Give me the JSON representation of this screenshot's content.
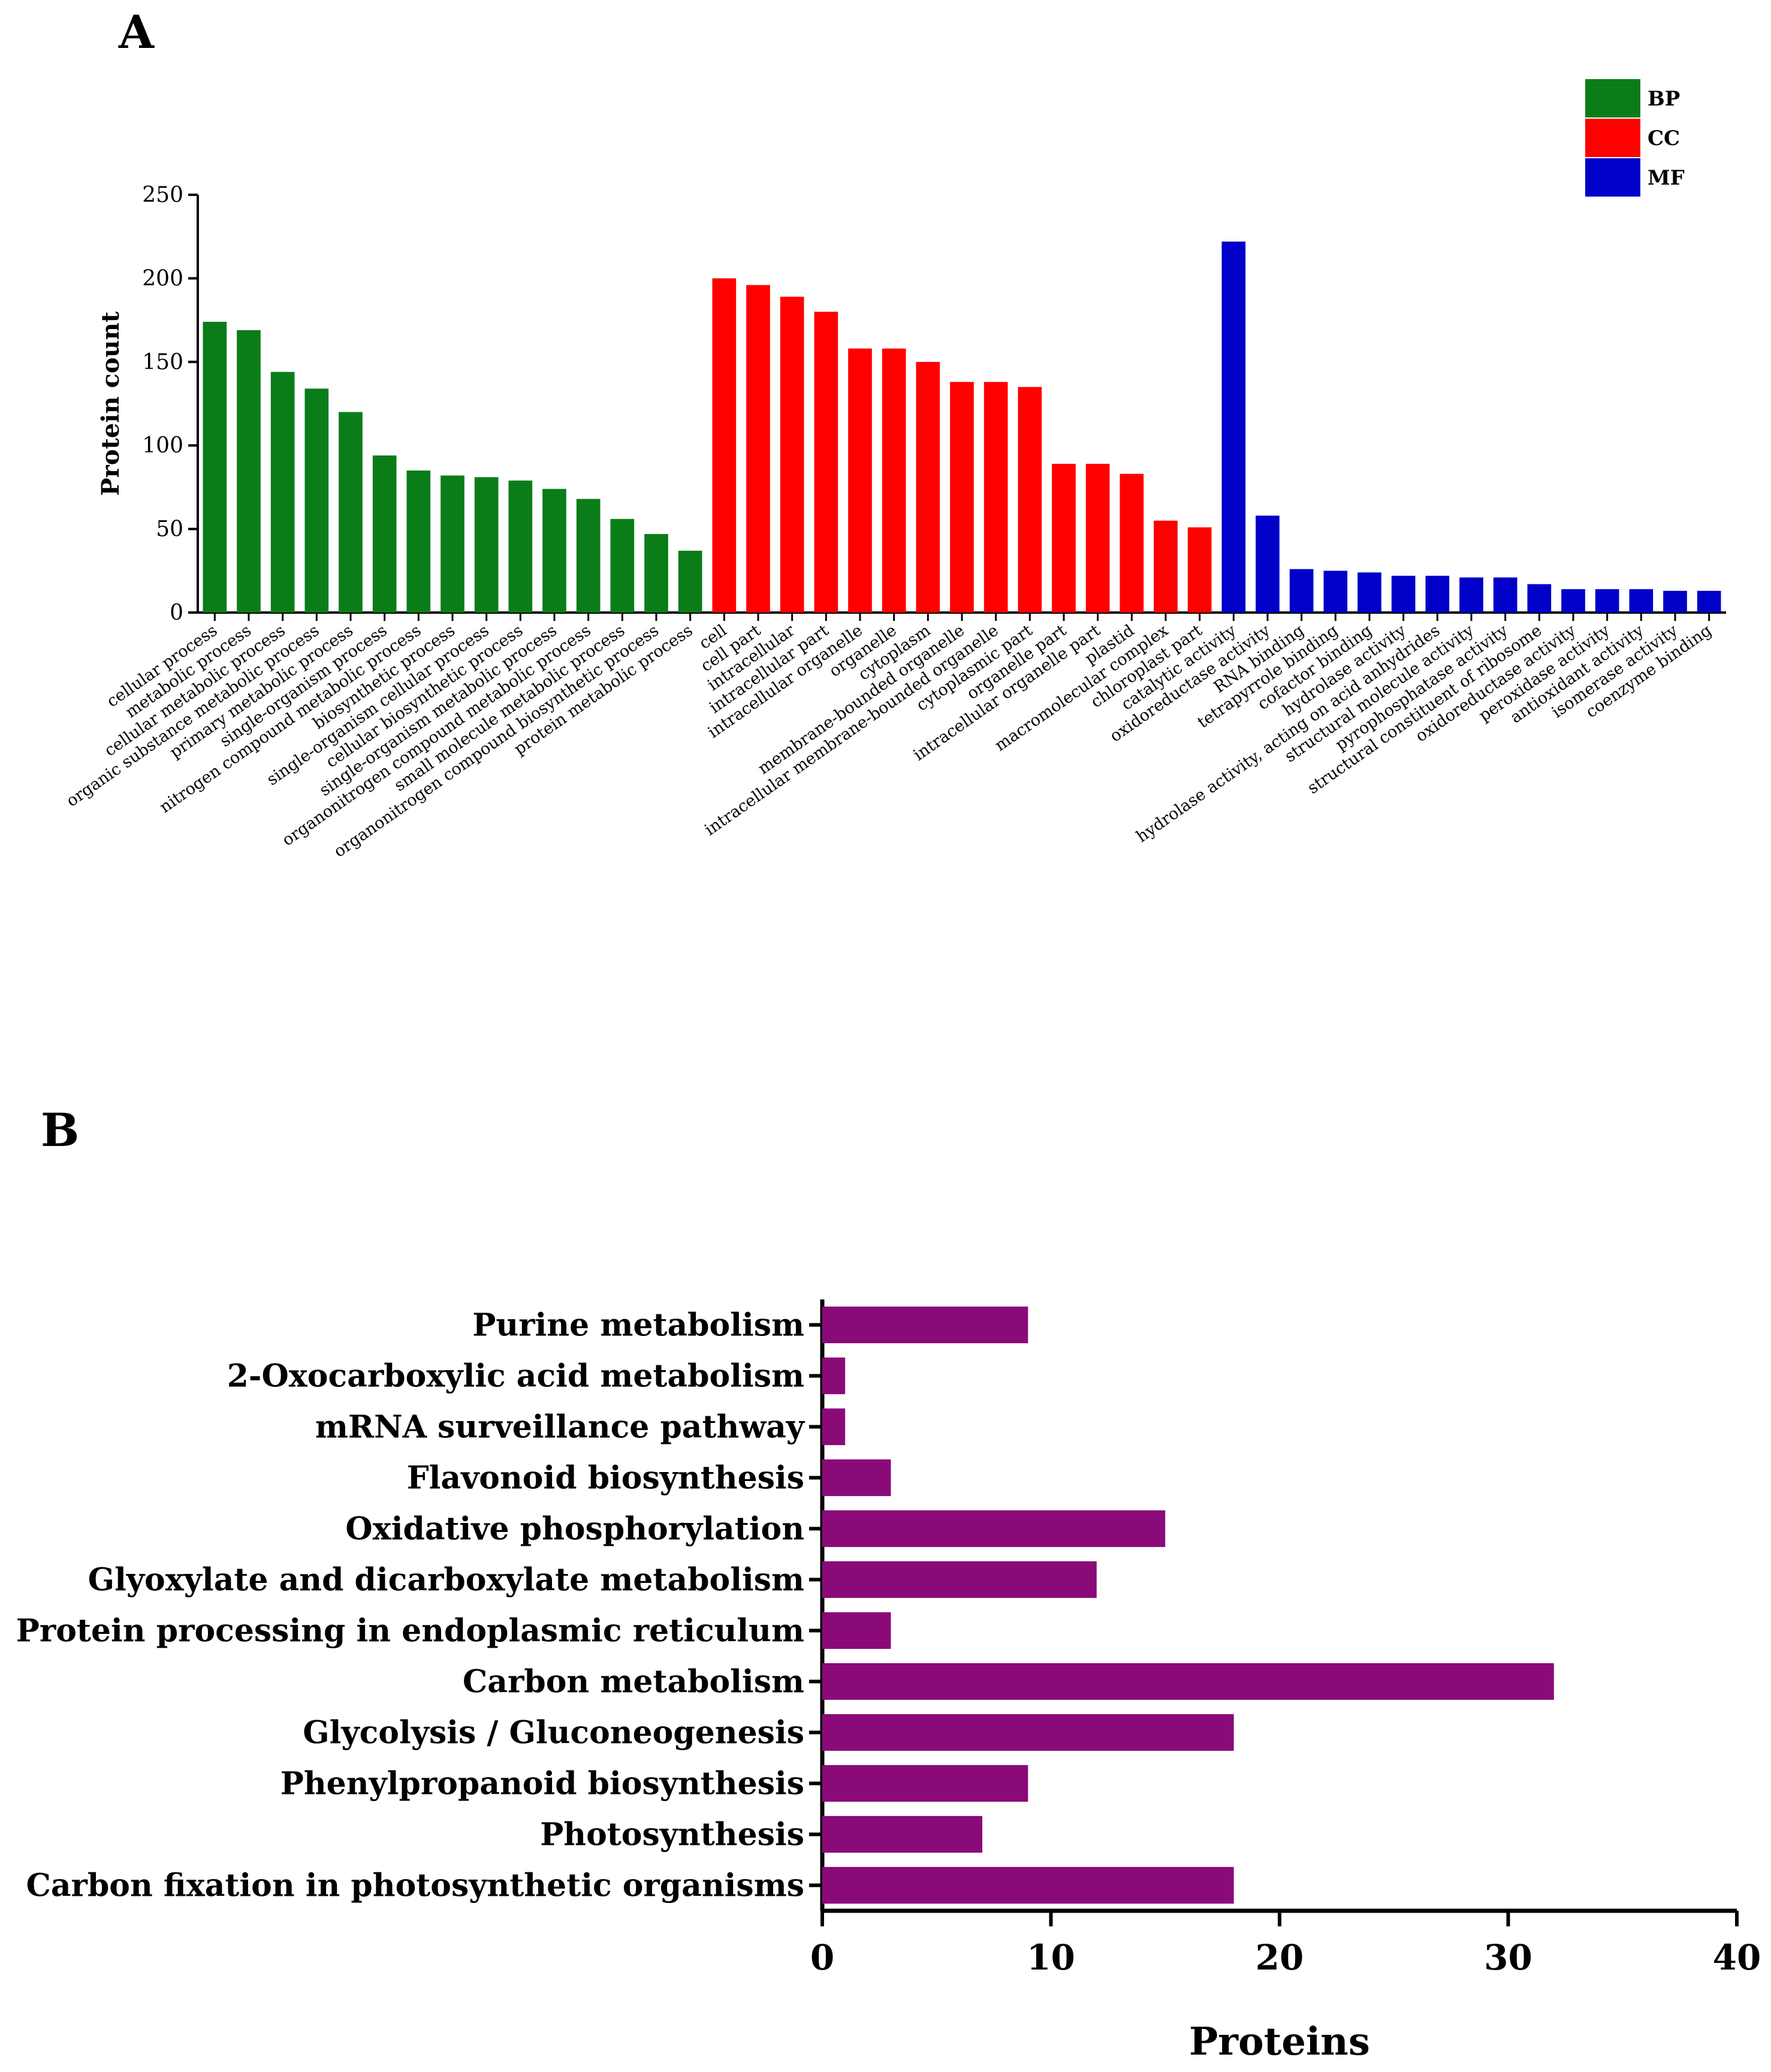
{
  "panels": {
    "a": "A",
    "b": "B"
  },
  "colors": {
    "BP": "#0a7d18",
    "CC": "#ff0000",
    "MF": "#0000c8",
    "kegg": "#8b0a7a"
  },
  "chart_data": [
    {
      "type": "bar",
      "title": "",
      "ylabel": "Protein count",
      "xlabel": "",
      "ylim": [
        0,
        250
      ],
      "yticks": [
        0,
        50,
        100,
        150,
        200,
        250
      ],
      "legend": {
        "placement": "top-right",
        "entries": [
          "BP",
          "CC",
          "MF"
        ]
      },
      "categories": [
        "cellular process",
        "metabolic process",
        "cellular metabolic process",
        "organic substance metabolic process",
        "primary metabolic process",
        "single-organism process",
        "nitrogen compound metabolic process",
        "biosynthetic process",
        "single-organism cellular process",
        "cellular biosynthetic process",
        "single-organism metabolic process",
        "organonitrogen compound metabolic process",
        "small molecule metabolic process",
        "organonitrogen compound biosynthetic process",
        "protein metabolic process",
        "cell",
        "cell part",
        "intracellular",
        "intracellular part",
        "intracellular organelle",
        "organelle",
        "cytoplasm",
        "membrane-bounded organelle",
        "intracellular membrane-bounded organelle",
        "cytoplasmic part",
        "organelle part",
        "intracellular organelle part",
        "plastid",
        "macromolecular complex",
        "chloroplast part",
        "catalytic activity",
        "oxidoreductase activity",
        "RNA binding",
        "tetrapyrrole binding",
        "cofactor binding",
        "hydrolase activity",
        "hydrolase activity, acting on acid anhydrides",
        "structural molecule activity",
        "pyrophosphatase activity",
        "structural constituent of ribosome",
        "oxidoreductase activity",
        "peroxidase activity",
        "antioxidant activity",
        "isomerase activity",
        "coenzyme binding"
      ],
      "values": [
        174,
        169,
        144,
        134,
        120,
        94,
        85,
        82,
        81,
        79,
        74,
        68,
        56,
        47,
        37,
        200,
        196,
        189,
        180,
        158,
        158,
        150,
        138,
        138,
        135,
        89,
        89,
        83,
        55,
        51,
        222,
        58,
        26,
        25,
        24,
        22,
        22,
        21,
        21,
        17,
        14,
        14,
        14,
        13,
        13
      ],
      "groups": [
        "BP",
        "BP",
        "BP",
        "BP",
        "BP",
        "BP",
        "BP",
        "BP",
        "BP",
        "BP",
        "BP",
        "BP",
        "BP",
        "BP",
        "BP",
        "CC",
        "CC",
        "CC",
        "CC",
        "CC",
        "CC",
        "CC",
        "CC",
        "CC",
        "CC",
        "CC",
        "CC",
        "CC",
        "CC",
        "CC",
        "MF",
        "MF",
        "MF",
        "MF",
        "MF",
        "MF",
        "MF",
        "MF",
        "MF",
        "MF",
        "MF",
        "MF",
        "MF",
        "MF",
        "MF"
      ]
    },
    {
      "type": "bar",
      "orientation": "horizontal",
      "title": "",
      "xlabel": "Proteins",
      "ylabel": "",
      "xlim": [
        0,
        40
      ],
      "xticks": [
        0,
        10,
        20,
        30,
        40
      ],
      "categories": [
        "Purine metabolism",
        "2-Oxocarboxylic acid metabolism",
        "mRNA surveillance pathway",
        "Flavonoid biosynthesis",
        "Oxidative phosphorylation",
        "Glyoxylate and dicarboxylate metabolism",
        "Protein processing in endoplasmic reticulum",
        "Carbon metabolism",
        "Glycolysis / Gluconeogenesis",
        "Phenylpropanoid biosynthesis",
        "Photosynthesis",
        "Carbon fixation in photosynthetic organisms"
      ],
      "values": [
        9,
        1,
        1,
        3,
        15,
        12,
        3,
        32,
        18,
        9,
        7,
        18
      ]
    }
  ]
}
